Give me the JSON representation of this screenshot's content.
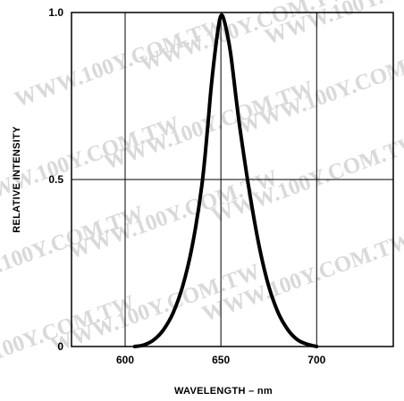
{
  "chart_data": {
    "type": "line",
    "title": "",
    "xlabel": "WAVELENGTH – nm",
    "ylabel": "RELATIVE INTENSITY",
    "xlim": [
      572,
      740
    ],
    "ylim": [
      0,
      1.0
    ],
    "x_ticks": [
      {
        "value": 600,
        "label": "600"
      },
      {
        "value": 650,
        "label": "650"
      },
      {
        "value": 700,
        "label": "700"
      }
    ],
    "y_ticks": [
      {
        "value": 0,
        "label": "0"
      },
      {
        "value": 0.5,
        "label": "0.5"
      },
      {
        "value": 1.0,
        "label": "1.0"
      }
    ],
    "grid": true,
    "series": [
      {
        "x": [
          605,
          610,
          615,
          620,
          625,
          630,
          635,
          640,
          643,
          645,
          648,
          650,
          652,
          655,
          658,
          660,
          665,
          670,
          675,
          680,
          685,
          690,
          695,
          700
        ],
        "y": [
          0.0,
          0.005,
          0.02,
          0.05,
          0.1,
          0.18,
          0.3,
          0.48,
          0.65,
          0.78,
          0.93,
          0.99,
          0.97,
          0.88,
          0.74,
          0.65,
          0.46,
          0.3,
          0.18,
          0.1,
          0.05,
          0.02,
          0.007,
          0.0
        ]
      }
    ]
  },
  "watermark": "WWW.100Y.COM.TW",
  "colors": {
    "curve": "#000000",
    "grid": "#000000",
    "watermark": "#d9d9d9"
  }
}
